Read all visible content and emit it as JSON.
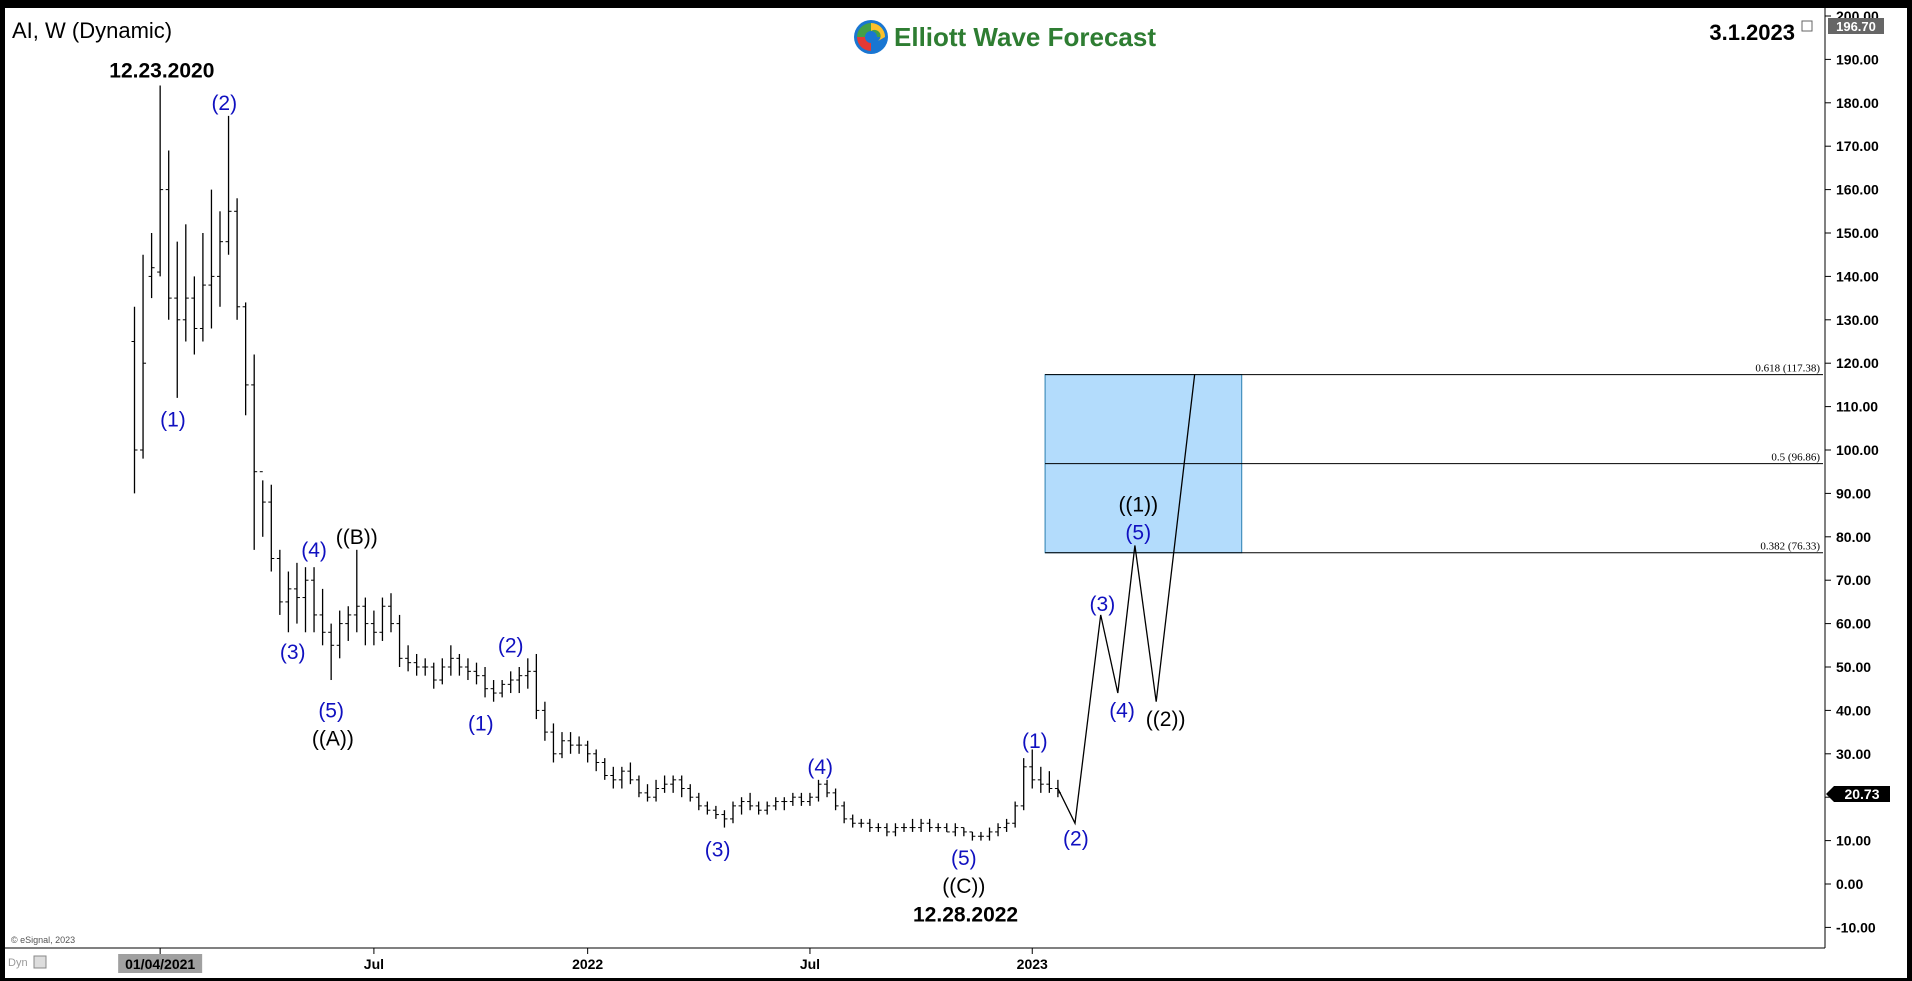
{
  "chart_data": {
    "type": "ohlc",
    "symbol_label": "AI, W (Dynamic)",
    "logo_text": "Elliott Wave Forecast",
    "date_top_right": "3.1.2023",
    "copyright": "© eSignal, 2023",
    "corner_label": "Dyn",
    "price_badge": "20.73",
    "top_price_badge": "196.70",
    "ylim": [
      -15,
      202
    ],
    "y_ticks": [
      {
        "v": 200,
        "t": "200.00"
      },
      {
        "v": 190,
        "t": "190.00"
      },
      {
        "v": 180,
        "t": "180.00"
      },
      {
        "v": 170,
        "t": "170.00"
      },
      {
        "v": 160,
        "t": "160.00"
      },
      {
        "v": 150,
        "t": "150.00"
      },
      {
        "v": 140,
        "t": "140.00"
      },
      {
        "v": 130,
        "t": "130.00"
      },
      {
        "v": 120,
        "t": "120.00"
      },
      {
        "v": 110,
        "t": "110.00"
      },
      {
        "v": 100,
        "t": "100.00"
      },
      {
        "v": 90,
        "t": "90.00"
      },
      {
        "v": 80,
        "t": "80.00"
      },
      {
        "v": 70,
        "t": "70.00"
      },
      {
        "v": 60,
        "t": "60.00"
      },
      {
        "v": 50,
        "t": "50.00"
      },
      {
        "v": 40,
        "t": "40.00"
      },
      {
        "v": 30,
        "t": "30.00"
      },
      {
        "v": 20,
        "t": "20.00"
      },
      {
        "v": 10,
        "t": "10.00"
      },
      {
        "v": 0,
        "t": "0.00"
      },
      {
        "v": -10,
        "t": "-10.00"
      }
    ],
    "x_ticks": [
      {
        "week": 3,
        "t": "01/04/2021",
        "highlight": true
      },
      {
        "week": 28,
        "t": "Jul"
      },
      {
        "week": 53,
        "t": "2022"
      },
      {
        "week": 79,
        "t": "Jul"
      },
      {
        "week": 105,
        "t": "2023"
      }
    ],
    "bars": [
      [
        0,
        125,
        133,
        90,
        100
      ],
      [
        1,
        100,
        145,
        98,
        120
      ],
      [
        2,
        140,
        150,
        135,
        142
      ],
      [
        3,
        141,
        184,
        140,
        160
      ],
      [
        4,
        160,
        169,
        130,
        135
      ],
      [
        5,
        135,
        148,
        112,
        130
      ],
      [
        6,
        130,
        152,
        125,
        135
      ],
      [
        7,
        135,
        140,
        122,
        128
      ],
      [
        8,
        128,
        150,
        125,
        138
      ],
      [
        9,
        138,
        160,
        128,
        140
      ],
      [
        10,
        140,
        155,
        133,
        148
      ],
      [
        11,
        148,
        177,
        145,
        155
      ],
      [
        12,
        155,
        158,
        130,
        133
      ],
      [
        13,
        133,
        134,
        108,
        115
      ],
      [
        14,
        115,
        122,
        77,
        95
      ],
      [
        15,
        95,
        93,
        80,
        88
      ],
      [
        16,
        88,
        92,
        72,
        75
      ],
      [
        17,
        75,
        77,
        62,
        65
      ],
      [
        18,
        65,
        72,
        58,
        68
      ],
      [
        19,
        68,
        74,
        60,
        66
      ],
      [
        20,
        66,
        73,
        58,
        70
      ],
      [
        21,
        70,
        73,
        58,
        62
      ],
      [
        22,
        62,
        68,
        55,
        58
      ],
      [
        23,
        58,
        60,
        47,
        55
      ],
      [
        24,
        55,
        63,
        52,
        60
      ],
      [
        25,
        60,
        64,
        56,
        62
      ],
      [
        26,
        62,
        77,
        58,
        64
      ],
      [
        27,
        64,
        66,
        55,
        60
      ],
      [
        28,
        60,
        63,
        55,
        58
      ],
      [
        29,
        58,
        66,
        56,
        64
      ],
      [
        30,
        64,
        67,
        58,
        60
      ],
      [
        31,
        60,
        62,
        50,
        52
      ],
      [
        32,
        52,
        55,
        49,
        51
      ],
      [
        33,
        51,
        53,
        48,
        50
      ],
      [
        34,
        50,
        52,
        48,
        50
      ],
      [
        35,
        50,
        51,
        45,
        47
      ],
      [
        36,
        47,
        52,
        46,
        50
      ],
      [
        37,
        50,
        55,
        48,
        52
      ],
      [
        38,
        52,
        53,
        48,
        50
      ],
      [
        39,
        50,
        52,
        47,
        49
      ],
      [
        40,
        49,
        51,
        46,
        48
      ],
      [
        41,
        48,
        50,
        43,
        45
      ],
      [
        42,
        45,
        47,
        42,
        44
      ],
      [
        43,
        44,
        47,
        43,
        46
      ],
      [
        44,
        46,
        49,
        44,
        47
      ],
      [
        45,
        47,
        50,
        44,
        48
      ],
      [
        46,
        48,
        52,
        45,
        49
      ],
      [
        47,
        49,
        53,
        38,
        40
      ],
      [
        48,
        40,
        42,
        33,
        35
      ],
      [
        49,
        35,
        37,
        28,
        30
      ],
      [
        50,
        30,
        35,
        29,
        33
      ],
      [
        51,
        33,
        35,
        30,
        32
      ],
      [
        52,
        32,
        34,
        30,
        32
      ],
      [
        53,
        32,
        33,
        28,
        30
      ],
      [
        54,
        30,
        31,
        26,
        28
      ],
      [
        55,
        28,
        29,
        24,
        25
      ],
      [
        56,
        25,
        27,
        22,
        24
      ],
      [
        57,
        24,
        27,
        22,
        26
      ],
      [
        58,
        26,
        28,
        23,
        24
      ],
      [
        59,
        24,
        25,
        20,
        21
      ],
      [
        60,
        21,
        23,
        19,
        20
      ],
      [
        61,
        20,
        24,
        19,
        22
      ],
      [
        62,
        22,
        25,
        21,
        23
      ],
      [
        63,
        23,
        25,
        21,
        24
      ],
      [
        64,
        24,
        25,
        20,
        22
      ],
      [
        65,
        22,
        23,
        19,
        20
      ],
      [
        66,
        20,
        21,
        17,
        18
      ],
      [
        67,
        18,
        19,
        16,
        17
      ],
      [
        68,
        17,
        18,
        15,
        16
      ],
      [
        69,
        16,
        17,
        13,
        15
      ],
      [
        70,
        15,
        19,
        14,
        18
      ],
      [
        71,
        18,
        20,
        16,
        19
      ],
      [
        72,
        19,
        21,
        17,
        18
      ],
      [
        73,
        18,
        19,
        16,
        17
      ],
      [
        74,
        17,
        19,
        16,
        18
      ],
      [
        75,
        18,
        20,
        17,
        19
      ],
      [
        76,
        19,
        20,
        17,
        19
      ],
      [
        77,
        19,
        21,
        18,
        20
      ],
      [
        78,
        20,
        21,
        18,
        19
      ],
      [
        79,
        19,
        21,
        18,
        20
      ],
      [
        80,
        20,
        24,
        19,
        23
      ],
      [
        81,
        23,
        24,
        20,
        21
      ],
      [
        82,
        21,
        22,
        17,
        18
      ],
      [
        83,
        18,
        19,
        14,
        15
      ],
      [
        84,
        15,
        16,
        13,
        14
      ],
      [
        85,
        14,
        15,
        13,
        14
      ],
      [
        86,
        14,
        15,
        12,
        13
      ],
      [
        87,
        13,
        14,
        12,
        13
      ],
      [
        88,
        13,
        14,
        11,
        12
      ],
      [
        89,
        12,
        14,
        11,
        13
      ],
      [
        90,
        13,
        14,
        12,
        13
      ],
      [
        91,
        13,
        15,
        12,
        13
      ],
      [
        92,
        13,
        15,
        12,
        14
      ],
      [
        93,
        14,
        15,
        12,
        13
      ],
      [
        94,
        13,
        14,
        12,
        13
      ],
      [
        95,
        13,
        14,
        12,
        12
      ],
      [
        96,
        12,
        14,
        11,
        13
      ],
      [
        97,
        13,
        13,
        11,
        12
      ],
      [
        98,
        12,
        12,
        10,
        11
      ],
      [
        99,
        11,
        12,
        10,
        11
      ],
      [
        100,
        11,
        13,
        10,
        12
      ],
      [
        101,
        12,
        14,
        11,
        13
      ],
      [
        102,
        13,
        15,
        12,
        14
      ],
      [
        103,
        14,
        19,
        13,
        18
      ],
      [
        104,
        18,
        29,
        17,
        27
      ],
      [
        105,
        27,
        31,
        22,
        24
      ],
      [
        106,
        24,
        27,
        21,
        23
      ],
      [
        107,
        23,
        26,
        21,
        22
      ],
      [
        108,
        22,
        24,
        20,
        21
      ]
    ],
    "projection_path": [
      [
        108,
        22
      ],
      [
        110,
        14
      ],
      [
        113,
        62
      ],
      [
        115,
        44
      ],
      [
        117,
        78
      ],
      [
        119.5,
        42
      ],
      [
        124,
        117.5
      ]
    ],
    "fib_box": {
      "x_start": 106.5,
      "x_end": 129.5,
      "levels": [
        {
          "v": 117.38,
          "t": "0.618 (117.38)"
        },
        {
          "v": 96.86,
          "t": "0.5 (96.86)"
        },
        {
          "v": 76.33,
          "t": "0.382 (76.33)"
        }
      ]
    },
    "wave_labels": [
      {
        "t": "12.23.2020",
        "week": 3.2,
        "v": 187.5,
        "color": "black",
        "bold": true
      },
      {
        "t": "(2)",
        "week": 10.5,
        "v": 180,
        "color": "blue"
      },
      {
        "t": "(1)",
        "week": 4.5,
        "v": 107,
        "color": "blue"
      },
      {
        "t": "(4)",
        "week": 21,
        "v": 77,
        "color": "blue"
      },
      {
        "t": "((B))",
        "week": 26,
        "v": 80,
        "color": "black"
      },
      {
        "t": "(3)",
        "week": 18.5,
        "v": 53.5,
        "color": "blue"
      },
      {
        "t": "(5)",
        "week": 23,
        "v": 40,
        "color": "blue"
      },
      {
        "t": "((A))",
        "week": 23.2,
        "v": 33.5,
        "color": "black"
      },
      {
        "t": "(2)",
        "week": 44,
        "v": 55,
        "color": "blue"
      },
      {
        "t": "(1)",
        "week": 40.5,
        "v": 37,
        "color": "blue"
      },
      {
        "t": "(3)",
        "week": 68.2,
        "v": 8,
        "color": "blue"
      },
      {
        "t": "(4)",
        "week": 80.2,
        "v": 27,
        "color": "blue"
      },
      {
        "t": "(5)",
        "week": 97,
        "v": 6,
        "color": "blue"
      },
      {
        "t": "((C))",
        "week": 97,
        "v": -0.5,
        "color": "black"
      },
      {
        "t": "12.28.2022",
        "week": 97.2,
        "v": -7,
        "color": "black",
        "bold": true
      },
      {
        "t": "(1)",
        "week": 105.3,
        "v": 33,
        "color": "blue"
      },
      {
        "t": "(2)",
        "week": 110.1,
        "v": 10.5,
        "color": "blue"
      },
      {
        "t": "(3)",
        "week": 113.2,
        "v": 64.5,
        "color": "blue"
      },
      {
        "t": "(4)",
        "week": 115.5,
        "v": 40,
        "color": "blue"
      },
      {
        "t": "((1))",
        "week": 117.4,
        "v": 87.5,
        "color": "black"
      },
      {
        "t": "(5)",
        "week": 117.4,
        "v": 81,
        "color": "blue"
      },
      {
        "t": "((2))",
        "week": 120.6,
        "v": 38,
        "color": "black"
      }
    ],
    "colors": {
      "background": "#ffffff",
      "frame": "#000000",
      "bars": "#000000",
      "wave_blue": "#1010c0",
      "fib_fill": "#b3dcfc",
      "fib_border": "#2a7fb0",
      "logo_green": "#2e7d32"
    }
  }
}
